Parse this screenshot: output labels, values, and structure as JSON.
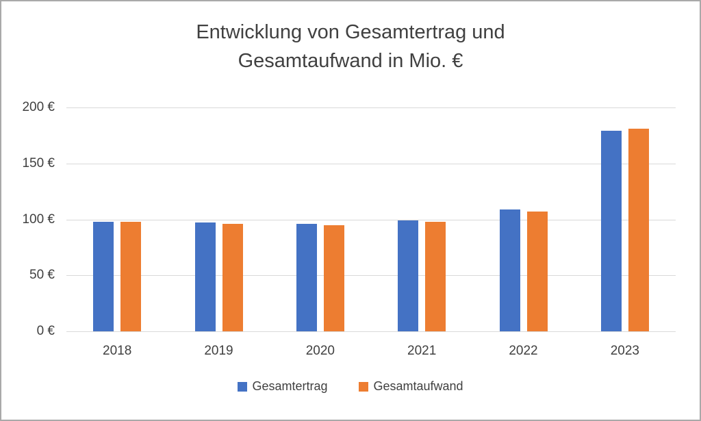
{
  "chart_data": {
    "type": "bar",
    "title": "Entwicklung von Gesamtertrag und Gesamtaufwand in Mio. €",
    "categories": [
      "2018",
      "2019",
      "2020",
      "2021",
      "2022",
      "2023"
    ],
    "series": [
      {
        "name": "Gesamtertrag",
        "color": "#4472C4",
        "values": [
          98,
          97,
          96,
          99,
          109,
          179
        ]
      },
      {
        "name": "Gesamtaufwand",
        "color": "#ED7D31",
        "values": [
          98,
          96,
          95,
          98,
          107,
          181
        ]
      }
    ],
    "ylim": [
      0,
      200
    ],
    "ytick_step": 50,
    "ytick_labels": [
      "0 €",
      "50 €",
      "100 €",
      "150 €",
      "200 €"
    ],
    "grid": true,
    "legend_position": "bottom"
  }
}
